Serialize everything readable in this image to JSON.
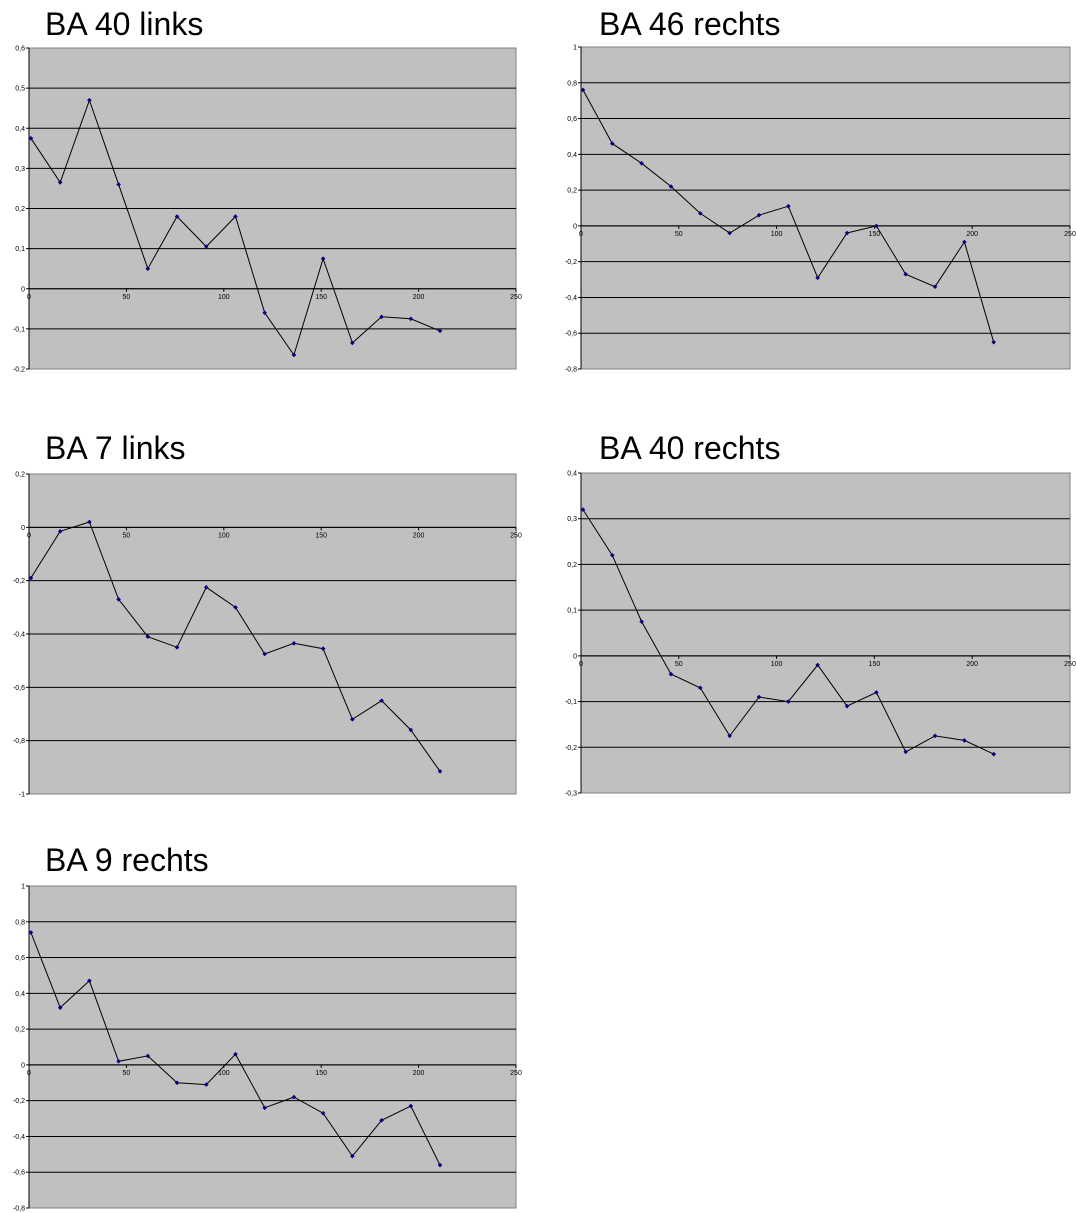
{
  "chart_data": [
    {
      "type": "line",
      "title": "BA 40 links",
      "xlim": [
        0,
        250
      ],
      "ylim": [
        -0.2,
        0.6
      ],
      "x_ticks": [
        "0",
        "50",
        "100",
        "150",
        "200",
        "250"
      ],
      "y_ticks": [
        "-0,2",
        "-0,1",
        "0",
        "0,1",
        "0,2",
        "0,3",
        "0,4",
        "0,5",
        "0,6"
      ],
      "y_step": 0.1,
      "x_step": 50,
      "grid": true,
      "legend": "none",
      "colors": {
        "plot_bg": "#c0c0c0",
        "line": "#000000",
        "marker": "#000080"
      },
      "x": [
        1,
        16,
        31,
        46,
        61,
        76,
        91,
        106,
        121,
        136,
        151,
        166,
        181,
        196,
        211
      ],
      "y": [
        0.375,
        0.265,
        0.47,
        0.26,
        0.05,
        0.18,
        0.105,
        0.18,
        -0.06,
        -0.165,
        0.075,
        -0.135,
        -0.07,
        -0.075,
        -0.105
      ]
    },
    {
      "type": "line",
      "title": "BA 46 rechts",
      "xlim": [
        0,
        250
      ],
      "ylim": [
        -0.8,
        1
      ],
      "x_ticks": [
        "0",
        "50",
        "100",
        "150",
        "200",
        "250"
      ],
      "y_ticks": [
        "-0,8",
        "-0,6",
        "-0,4",
        "-0,2",
        "0",
        "0,2",
        "0,4",
        "0,6",
        "0,8",
        "1"
      ],
      "y_step": 0.2,
      "x_step": 50,
      "grid": true,
      "legend": "none",
      "colors": {
        "plot_bg": "#c0c0c0",
        "line": "#000000",
        "marker": "#000080"
      },
      "x": [
        1,
        16,
        31,
        46,
        61,
        76,
        91,
        106,
        121,
        136,
        151,
        166,
        181,
        196,
        211
      ],
      "y": [
        0.76,
        0.46,
        0.35,
        0.22,
        0.07,
        -0.04,
        0.06,
        0.11,
        -0.29,
        -0.04,
        0,
        -0.27,
        -0.34,
        -0.09,
        -0.65
      ]
    },
    {
      "type": "line",
      "title": "BA 7 links",
      "xlim": [
        0,
        250
      ],
      "ylim": [
        -1,
        0.2
      ],
      "x_ticks": [
        "0",
        "50",
        "100",
        "150",
        "200",
        "250"
      ],
      "y_ticks": [
        "-1",
        "-0,8",
        "-0,6",
        "-0,4",
        "-0,2",
        "0",
        "0,2"
      ],
      "y_step": 0.2,
      "x_step": 50,
      "grid": true,
      "legend": "none",
      "colors": {
        "plot_bg": "#c0c0c0",
        "line": "#000000",
        "marker": "#000080"
      },
      "x": [
        1,
        16,
        31,
        46,
        61,
        76,
        91,
        106,
        121,
        136,
        151,
        166,
        181,
        196,
        211
      ],
      "y": [
        -0.19,
        -0.015,
        0.02,
        -0.27,
        -0.41,
        -0.45,
        -0.225,
        -0.3,
        -0.475,
        -0.435,
        -0.455,
        -0.72,
        -0.65,
        -0.76,
        -0.915
      ]
    },
    {
      "type": "line",
      "title": "BA 40 rechts",
      "xlim": [
        0,
        250
      ],
      "ylim": [
        -0.3,
        0.4
      ],
      "x_ticks": [
        "0",
        "50",
        "100",
        "150",
        "200",
        "250"
      ],
      "y_ticks": [
        "-0,3",
        "-0,2",
        "-0,1",
        "0",
        "0,1",
        "0,2",
        "0,3",
        "0,4"
      ],
      "y_step": 0.1,
      "x_step": 50,
      "grid": true,
      "legend": "none",
      "colors": {
        "plot_bg": "#c0c0c0",
        "line": "#000000",
        "marker": "#000080"
      },
      "x": [
        1,
        16,
        31,
        46,
        61,
        76,
        91,
        106,
        121,
        136,
        151,
        166,
        181,
        196,
        211
      ],
      "y": [
        0.32,
        0.22,
        0.075,
        -0.04,
        -0.07,
        -0.175,
        -0.09,
        -0.1,
        -0.02,
        -0.11,
        -0.08,
        -0.21,
        -0.175,
        -0.185,
        -0.215
      ]
    },
    {
      "type": "line",
      "title": "BA 9 rechts",
      "xlim": [
        0,
        250
      ],
      "ylim": [
        -0.8,
        1
      ],
      "x_ticks": [
        "0",
        "50",
        "100",
        "150",
        "200",
        "250"
      ],
      "y_ticks": [
        "-0,8",
        "-0,6",
        "-0,4",
        "-0,2",
        "0",
        "0,2",
        "0,4",
        "0,6",
        "0,8",
        "1"
      ],
      "y_step": 0.2,
      "x_step": 50,
      "grid": true,
      "legend": "none",
      "colors": {
        "plot_bg": "#c0c0c0",
        "line": "#000000",
        "marker": "#000080"
      },
      "x": [
        1,
        16,
        31,
        46,
        61,
        76,
        91,
        106,
        121,
        136,
        151,
        166,
        181,
        196,
        211
      ],
      "y": [
        0.74,
        0.32,
        0.47,
        0.02,
        0.05,
        -0.1,
        -0.11,
        0.06,
        -0.24,
        -0.18,
        -0.27,
        -0.51,
        -0.31,
        -0.23,
        -0.56
      ]
    }
  ]
}
